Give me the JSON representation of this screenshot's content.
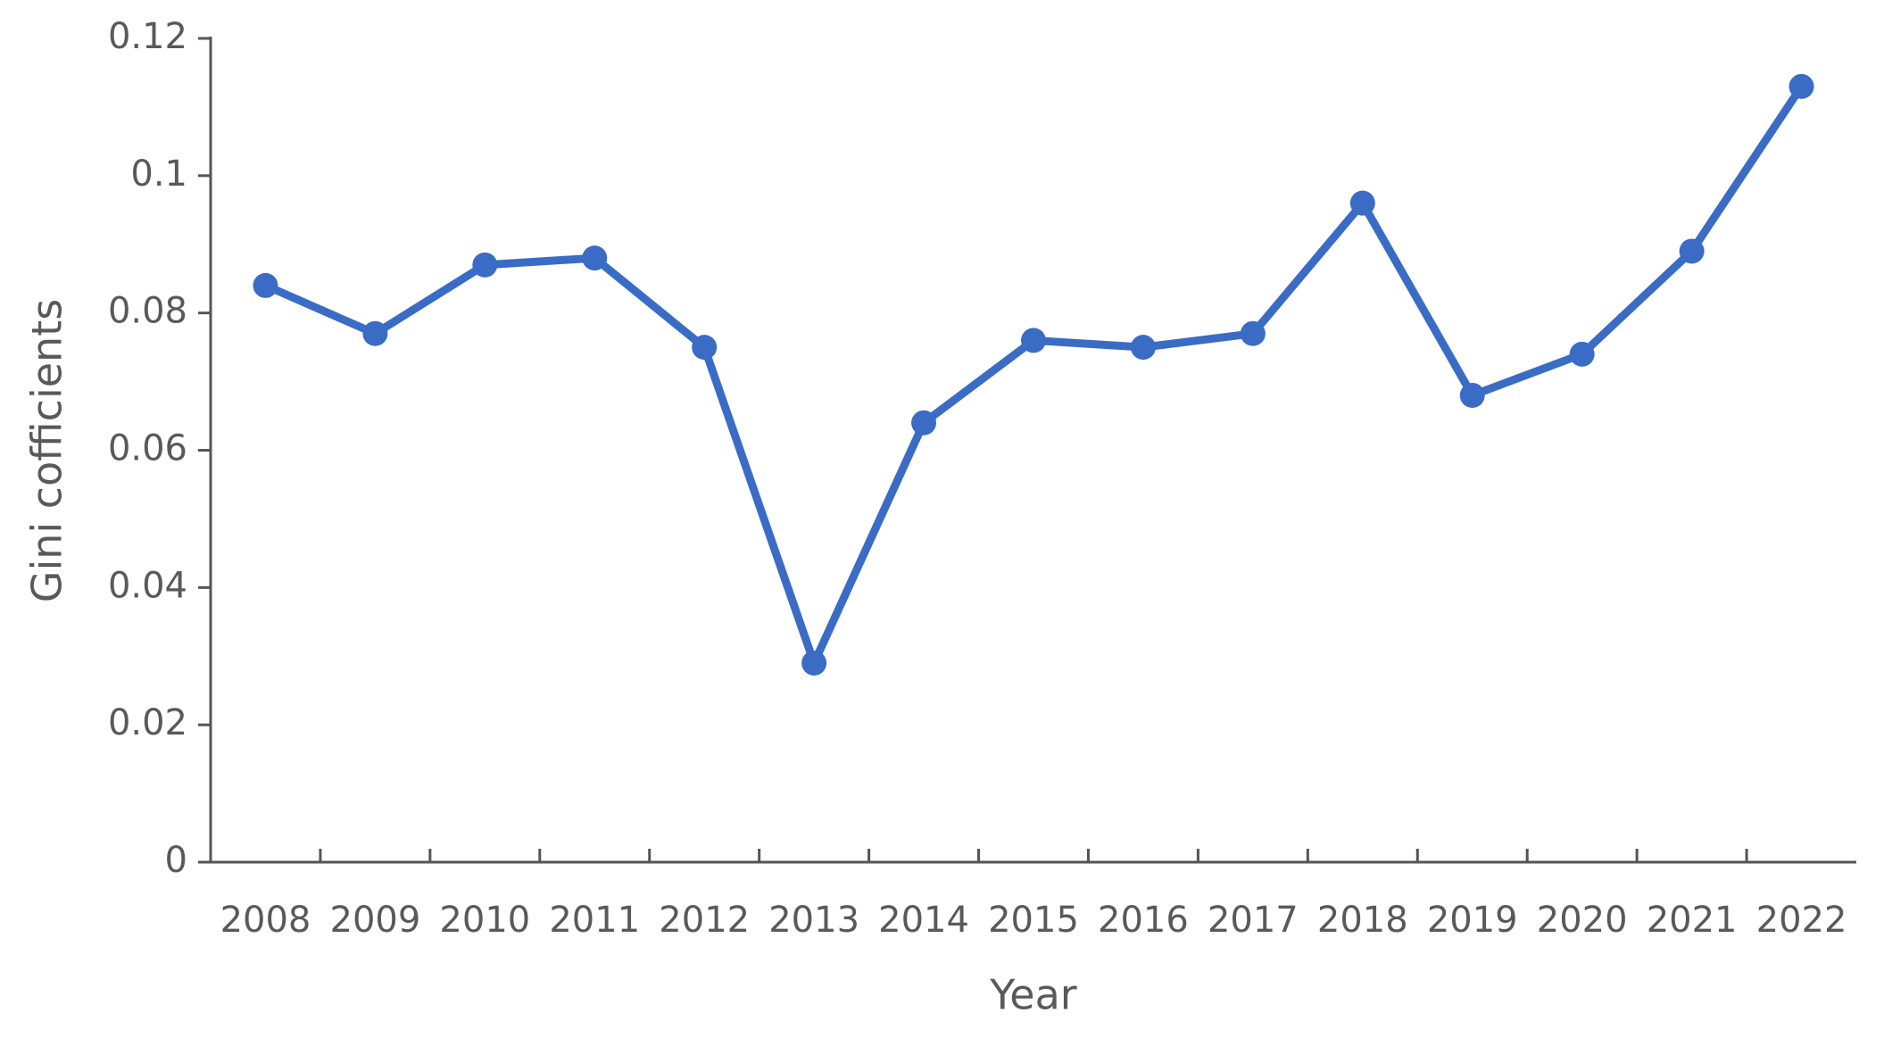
{
  "chart_data": {
    "type": "line",
    "x_label": "Year",
    "y_label": "Gini cofficients",
    "categories": [
      "2008",
      "2009",
      "2010",
      "2011",
      "2012",
      "2013",
      "2014",
      "2015",
      "2016",
      "2017",
      "2018",
      "2019",
      "2020",
      "2021",
      "2022"
    ],
    "values": [
      0.084,
      0.077,
      0.087,
      0.088,
      0.075,
      0.029,
      0.064,
      0.076,
      0.075,
      0.077,
      0.096,
      0.068,
      0.074,
      0.089,
      0.113
    ],
    "color": "#3a6cc6",
    "ylim": [
      0,
      0.12
    ],
    "yticks": [
      0,
      0.02,
      0.04,
      0.06,
      0.08,
      0.1,
      0.12
    ],
    "grid": false
  }
}
